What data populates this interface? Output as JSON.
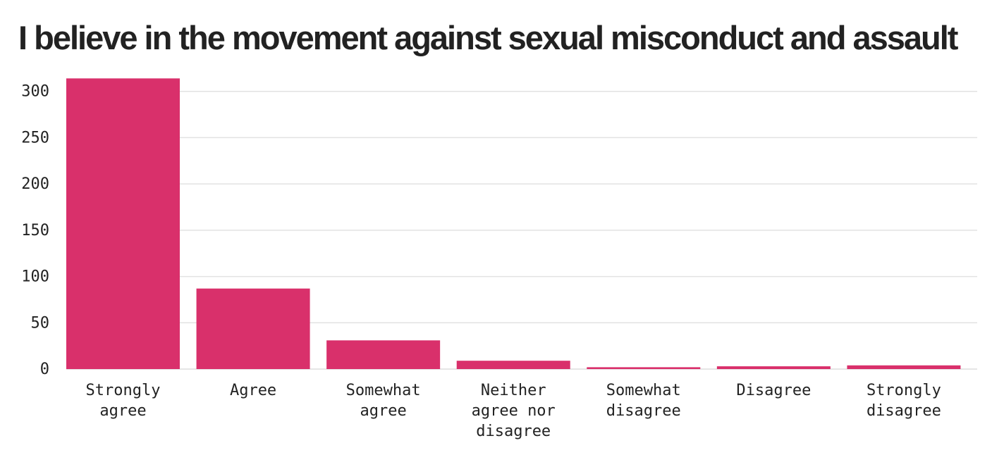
{
  "chart_data": {
    "type": "bar",
    "title": "I believe in the movement against sexual misconduct and assault",
    "categories": [
      [
        "Strongly",
        "agree"
      ],
      [
        "Agree"
      ],
      [
        "Somewhat",
        "agree"
      ],
      [
        "Neither",
        "agree nor",
        "disagree"
      ],
      [
        "Somewhat",
        "disagree"
      ],
      [
        "Disagree"
      ],
      [
        "Strongly",
        "disagree"
      ]
    ],
    "values": [
      314,
      87,
      31,
      9,
      2,
      3,
      4
    ],
    "yticks": [
      0,
      50,
      100,
      150,
      200,
      250,
      300
    ],
    "ylim": [
      0,
      315
    ],
    "grid": true,
    "bar_color": "#d9306b",
    "grid_color": "#e2e2e2"
  }
}
